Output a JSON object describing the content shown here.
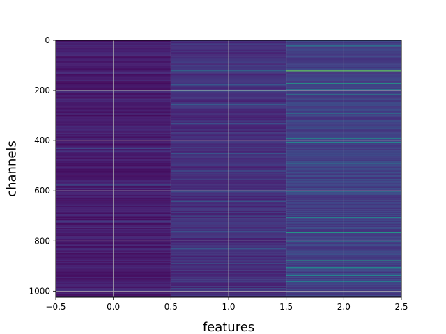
{
  "chart_data": {
    "type": "heatmap",
    "title": "",
    "xlabel": "features",
    "ylabel": "channels",
    "xlim": [
      -0.5,
      2.5
    ],
    "ylim": [
      1024,
      0
    ],
    "y_inverted": true,
    "grid": true,
    "colormap": "viridis",
    "color_range": [
      0,
      1
    ],
    "n_columns": 3,
    "n_rows": 1024,
    "x_ticks": [
      "-0.5",
      "0.0",
      "0.5",
      "1.0",
      "1.5",
      "2.0",
      "2.5"
    ],
    "x_tick_values": [
      -0.5,
      0.0,
      0.5,
      1.0,
      1.5,
      2.0,
      2.5
    ],
    "y_ticks": [
      "0",
      "200",
      "400",
      "600",
      "800",
      "1000"
    ],
    "y_tick_values": [
      0,
      200,
      400,
      600,
      800,
      1000
    ],
    "columns": [
      {
        "x": 0,
        "base_level": 0.08,
        "highlight_rows": [
          {
            "row": 160,
            "value": 0.2
          },
          {
            "row": 430,
            "value": 0.25
          },
          {
            "row": 440,
            "value": 0.2
          },
          {
            "row": 575,
            "value": 0.3
          },
          {
            "row": 720,
            "value": 0.25
          },
          {
            "row": 995,
            "value": 0.2
          }
        ]
      },
      {
        "x": 1,
        "base_level": 0.15,
        "highlight_rows": [
          {
            "row": 120,
            "value": 0.45
          },
          {
            "row": 175,
            "value": 0.35
          },
          {
            "row": 200,
            "value": 0.4
          },
          {
            "row": 255,
            "value": 0.35
          },
          {
            "row": 330,
            "value": 0.3
          },
          {
            "row": 450,
            "value": 0.35
          },
          {
            "row": 520,
            "value": 0.3
          },
          {
            "row": 600,
            "value": 0.4
          },
          {
            "row": 640,
            "value": 0.35
          },
          {
            "row": 700,
            "value": 0.4
          },
          {
            "row": 760,
            "value": 0.3
          },
          {
            "row": 830,
            "value": 0.35
          },
          {
            "row": 890,
            "value": 0.4
          },
          {
            "row": 990,
            "value": 0.5
          }
        ]
      },
      {
        "x": 2,
        "base_level": 0.22,
        "highlight_rows": [
          {
            "row": 20,
            "value": 0.5
          },
          {
            "row": 120,
            "value": 0.85
          },
          {
            "row": 170,
            "value": 0.7
          },
          {
            "row": 195,
            "value": 0.55
          },
          {
            "row": 215,
            "value": 0.6
          },
          {
            "row": 290,
            "value": 0.5
          },
          {
            "row": 390,
            "value": 0.6
          },
          {
            "row": 405,
            "value": 0.55
          },
          {
            "row": 490,
            "value": 0.5
          },
          {
            "row": 600,
            "value": 0.6
          },
          {
            "row": 705,
            "value": 0.55
          },
          {
            "row": 765,
            "value": 0.7
          },
          {
            "row": 800,
            "value": 0.55
          },
          {
            "row": 875,
            "value": 0.7
          },
          {
            "row": 905,
            "value": 0.6
          },
          {
            "row": 935,
            "value": 0.55
          },
          {
            "row": 960,
            "value": 0.5
          }
        ]
      }
    ]
  }
}
